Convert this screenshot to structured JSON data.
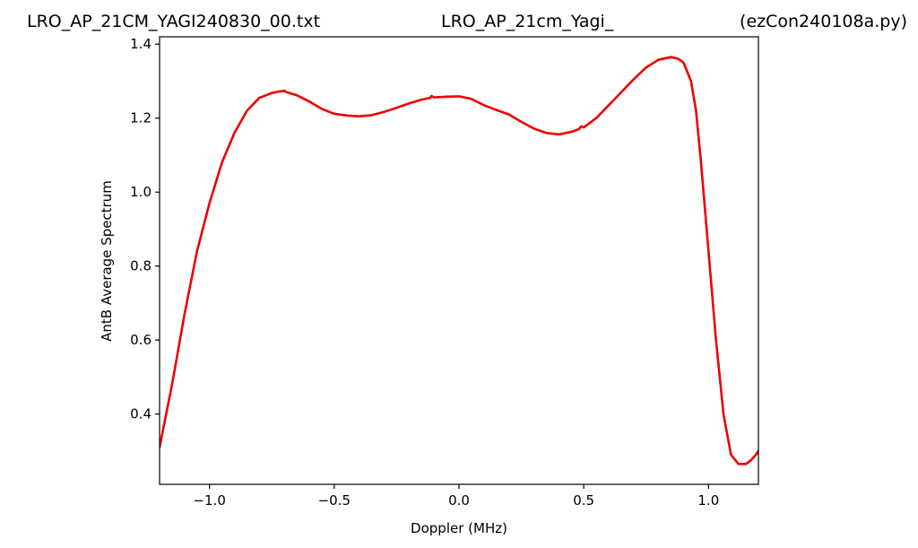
{
  "chart_data": {
    "type": "line",
    "title_left": "LRO_AP_21CM_YAGI240830_00.txt",
    "title_center": "LRO_AP_21cm_Yagi_",
    "title_right": "(ezCon240108a.py)",
    "xlabel": "Doppler (MHz)",
    "ylabel": "AntB Average Spectrum",
    "xlim": [
      -1.2,
      1.2
    ],
    "ylim": [
      0.21,
      1.42
    ],
    "xticks": [
      -1.0,
      -0.5,
      0.0,
      0.5,
      1.0
    ],
    "xtick_labels": [
      "−1.0",
      "−0.5",
      "0.0",
      "0.5",
      "1.0"
    ],
    "yticks": [
      0.4,
      0.6,
      0.8,
      1.0,
      1.2,
      1.4
    ],
    "ytick_labels": [
      "0.4",
      "0.6",
      "0.8",
      "1.0",
      "1.2",
      "1.4"
    ],
    "grid": false,
    "series": [
      {
        "color": "#ee0000",
        "x": [
          -1.2,
          -1.15,
          -1.1,
          -1.05,
          -1.0,
          -0.95,
          -0.9,
          -0.85,
          -0.8,
          -0.75,
          -0.72,
          -0.7,
          -0.69,
          -0.65,
          -0.6,
          -0.55,
          -0.5,
          -0.45,
          -0.4,
          -0.35,
          -0.3,
          -0.25,
          -0.2,
          -0.15,
          -0.115,
          -0.11,
          -0.1,
          -0.05,
          0.0,
          0.05,
          0.1,
          0.15,
          0.2,
          0.25,
          0.3,
          0.35,
          0.4,
          0.45,
          0.48,
          0.49,
          0.5,
          0.55,
          0.6,
          0.65,
          0.7,
          0.75,
          0.8,
          0.85,
          0.88,
          0.9,
          0.93,
          0.95,
          0.97,
          1.0,
          1.03,
          1.06,
          1.09,
          1.12,
          1.15,
          1.17,
          1.19,
          1.2
        ],
        "y": [
          0.31,
          0.48,
          0.67,
          0.84,
          0.97,
          1.08,
          1.16,
          1.22,
          1.255,
          1.268,
          1.272,
          1.274,
          1.27,
          1.262,
          1.245,
          1.225,
          1.212,
          1.207,
          1.205,
          1.208,
          1.217,
          1.228,
          1.24,
          1.25,
          1.255,
          1.26,
          1.256,
          1.258,
          1.259,
          1.252,
          1.235,
          1.222,
          1.21,
          1.19,
          1.172,
          1.16,
          1.156,
          1.163,
          1.17,
          1.178,
          1.175,
          1.2,
          1.235,
          1.27,
          1.305,
          1.337,
          1.358,
          1.365,
          1.36,
          1.35,
          1.3,
          1.22,
          1.08,
          0.84,
          0.6,
          0.4,
          0.29,
          0.265,
          0.265,
          0.275,
          0.29,
          0.3
        ]
      }
    ]
  }
}
